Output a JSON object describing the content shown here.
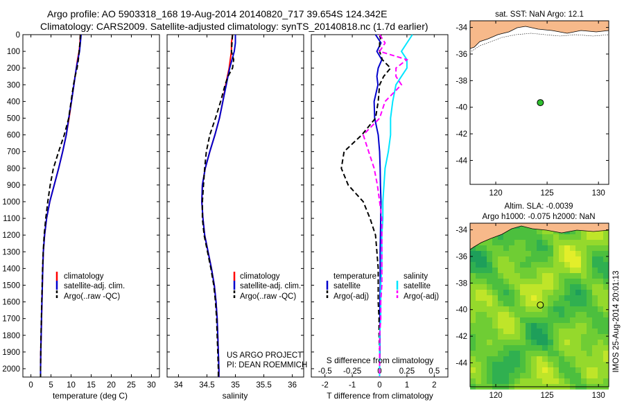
{
  "header": {
    "line1": "Argo profile: AO 5903318_168 19-Aug-2014 20140820_717 39.654S 124.342E",
    "line2": "Climatology: CARS2009. Satellite-adjusted climatology: synTS_20140818.nc (1.7d earlier)"
  },
  "colors": {
    "climatology": "#ff0000",
    "satellite": "#0000cc",
    "argo": "#000000",
    "salinity_satellite": "#00e5ff",
    "salinity_argo": "#ff00ff",
    "land": "#f7b98a",
    "float_marker": "#2fbf2f"
  },
  "chart_data": [
    {
      "type": "line",
      "panel": "temperature",
      "xlabel": "temperature (deg C)",
      "xlim": [
        -2,
        32
      ],
      "xticks": [
        0,
        5,
        10,
        15,
        20,
        25,
        30
      ],
      "ylim": [
        2050,
        0
      ],
      "yticks": [
        0,
        100,
        200,
        300,
        400,
        500,
        600,
        700,
        800,
        900,
        1000,
        1100,
        1200,
        1300,
        1400,
        1500,
        1600,
        1700,
        1800,
        1900,
        2000
      ],
      "depth": [
        0,
        50,
        100,
        150,
        200,
        250,
        300,
        400,
        500,
        600,
        700,
        800,
        900,
        1000,
        1100,
        1200,
        1300,
        1400,
        1500,
        1600,
        1700,
        1800,
        1900,
        2000,
        2050
      ],
      "series": [
        {
          "name": "climatology",
          "style": "solid",
          "values": [
            12.3,
            12.2,
            12.0,
            11.6,
            11.3,
            11.0,
            10.7,
            10.1,
            9.5,
            8.8,
            7.9,
            6.9,
            5.8,
            4.7,
            3.9,
            3.4,
            3.1,
            2.95,
            2.85,
            2.75,
            2.65,
            2.55,
            2.45,
            2.4,
            2.4
          ]
        },
        {
          "name": "satellite-adj. clim.",
          "style": "solid",
          "values": [
            12.5,
            12.3,
            12.1,
            11.7,
            11.3,
            11.0,
            10.7,
            10.1,
            9.4,
            8.8,
            7.9,
            6.9,
            5.8,
            4.7,
            3.9,
            3.4,
            3.1,
            2.95,
            2.85,
            2.75,
            2.65,
            2.55,
            2.45,
            2.4,
            2.4
          ]
        },
        {
          "name": "Argo(..raw -QC)",
          "style": "dashed",
          "values": [
            12.3,
            12.2,
            12.0,
            11.8,
            11.5,
            11.0,
            10.6,
            10.0,
            9.4,
            8.3,
            6.9,
            5.6,
            4.8,
            4.2,
            3.7,
            3.3,
            3.05,
            2.9,
            2.8,
            2.7,
            2.6,
            2.5,
            2.45,
            2.4,
            2.4
          ]
        }
      ]
    },
    {
      "type": "line",
      "panel": "salinity",
      "xlabel": "salinity",
      "xlim": [
        33.8,
        36.2
      ],
      "xticks": [
        34,
        34.5,
        35,
        35.5,
        36
      ],
      "xticklabels": [
        "34",
        "34.5",
        "35",
        "35.5",
        "36"
      ],
      "ylim": [
        2050,
        0
      ],
      "depth": [
        0,
        50,
        100,
        150,
        200,
        250,
        300,
        400,
        500,
        600,
        700,
        800,
        900,
        1000,
        1100,
        1200,
        1300,
        1400,
        1500,
        1600,
        1700,
        1800,
        1900,
        2000,
        2050
      ],
      "series": [
        {
          "name": "climatology",
          "style": "solid",
          "values": [
            34.95,
            34.93,
            34.93,
            34.91,
            34.89,
            34.86,
            34.83,
            34.78,
            34.72,
            34.64,
            34.55,
            34.47,
            34.42,
            34.41,
            34.43,
            34.46,
            34.52,
            34.58,
            34.63,
            34.66,
            34.68,
            34.69,
            34.7,
            34.71,
            34.71
          ]
        },
        {
          "name": "satellite-adj. clim.",
          "style": "solid",
          "values": [
            35.0,
            35.0,
            34.98,
            34.94,
            34.9,
            34.87,
            34.84,
            34.78,
            34.72,
            34.64,
            34.55,
            34.47,
            34.42,
            34.41,
            34.43,
            34.46,
            34.52,
            34.58,
            34.63,
            34.66,
            34.68,
            34.69,
            34.7,
            34.71,
            34.71
          ]
        },
        {
          "name": "Argo(..raw -QC)",
          "style": "dashed",
          "values": [
            34.95,
            34.94,
            34.93,
            34.97,
            34.95,
            34.87,
            34.82,
            34.74,
            34.65,
            34.55,
            34.49,
            34.46,
            34.44,
            34.42,
            34.42,
            34.45,
            34.51,
            34.57,
            34.62,
            34.65,
            34.67,
            34.68,
            34.69,
            34.7,
            34.7
          ]
        }
      ]
    },
    {
      "type": "line",
      "panel": "difference",
      "xlabel": "T difference from climatology",
      "xlabel2": "S difference from climatology",
      "xlim": [
        -2.5,
        2.5
      ],
      "xticks": [
        -2,
        -1,
        0,
        1,
        2
      ],
      "xticks2": [
        -0.5,
        -0.25,
        0,
        0.25,
        0.5
      ],
      "xticklabels2": [
        "-0.5",
        "-0.25",
        "0",
        "0.25",
        "0.5"
      ],
      "ylim": [
        2050,
        0
      ],
      "legend_titles": {
        "temperature": "temperature",
        "salinity": "salinity"
      },
      "depth": [
        0,
        50,
        100,
        150,
        200,
        250,
        300,
        400,
        500,
        600,
        700,
        800,
        900,
        1000,
        1100,
        1200,
        1300,
        1400,
        1500,
        1600,
        1700,
        1800,
        1900,
        2000,
        2050
      ],
      "series": [
        {
          "name": "satellite",
          "group": "temperature",
          "style": "solid",
          "values": [
            -0.15,
            0.05,
            -0.1,
            0.08,
            -0.05,
            -0.1,
            -0.06,
            -0.2,
            -0.18,
            -0.05,
            0.0,
            0.02,
            0.03,
            0.05,
            0.04,
            0.03,
            0.02,
            0.02,
            0.02,
            0.01,
            0.01,
            0.01,
            0.01,
            0.0,
            0.0
          ]
        },
        {
          "name": "Argo(-adj)",
          "group": "temperature",
          "style": "dashed",
          "values": [
            0.05,
            0.0,
            0.0,
            0.1,
            0.4,
            0.15,
            0.0,
            -0.05,
            -0.15,
            -0.65,
            -1.3,
            -1.4,
            -1.15,
            -0.6,
            -0.35,
            -0.15,
            -0.1,
            -0.05,
            -0.05,
            -0.05,
            -0.02,
            -0.02,
            0.0,
            0.0,
            0.0
          ]
        },
        {
          "name": "satellite",
          "group": "salinity",
          "style": "solid",
          "values": [
            0.3,
            0.25,
            0.2,
            0.25,
            0.25,
            0.2,
            0.15,
            0.12,
            0.1,
            0.1,
            0.08,
            0.05,
            0.04,
            0.03,
            0.03,
            0.02,
            0.02,
            0.02,
            0.01,
            0.01,
            0.01,
            0.0,
            0.0,
            0.0,
            0.0
          ]
        },
        {
          "name": "Argo(-adj)",
          "group": "salinity",
          "style": "dashed",
          "values": [
            0.0,
            0.05,
            0.0,
            0.25,
            0.15,
            0.15,
            0.2,
            0.05,
            0.0,
            -0.15,
            -0.1,
            -0.05,
            -0.02,
            0.0,
            0.02,
            0.02,
            0.02,
            0.02,
            0.02,
            0.01,
            0.01,
            0.0,
            0.0,
            0.0,
            0.0
          ]
        }
      ]
    },
    {
      "type": "scatter",
      "panel": "sst-map",
      "title": "sat. SST: NaN Argo: 12.1",
      "xlim": [
        117.5,
        131
      ],
      "ylim": [
        -45.8,
        -33.5
      ],
      "xticks": [
        120,
        125,
        130
      ],
      "yticks": [
        -34,
        -36,
        -38,
        -40,
        -42,
        -44
      ],
      "float_position": {
        "lon": 124.342,
        "lat": -39.654
      }
    },
    {
      "type": "heatmap",
      "panel": "sla-map",
      "title1": "Altim. SLA: -0.0039",
      "title2": "Argo h1000: -0.075 h2000: NaN",
      "xlim": [
        117.5,
        131
      ],
      "ylim": [
        -45.8,
        -33.5
      ],
      "xticks": [
        120,
        125,
        130
      ],
      "yticks": [
        -34,
        -36,
        -38,
        -40,
        -42,
        -44
      ],
      "float_position": {
        "lon": 124.342,
        "lat": -39.654
      }
    }
  ],
  "annotations": {
    "project": "US ARGO PROJECT",
    "pi": "PI: DEAN ROEMMICH",
    "side_stamp": "IMOS 25-Aug-2014 20:01:13"
  }
}
